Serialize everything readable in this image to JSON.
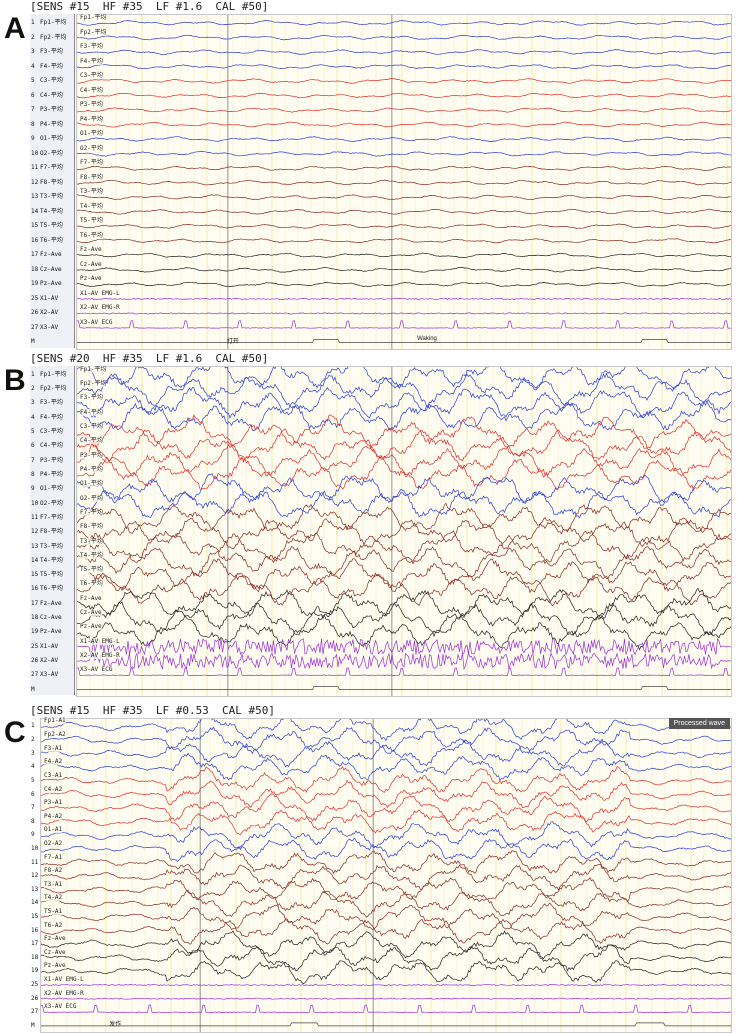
{
  "panels": [
    {
      "letter": "A",
      "header": "[SENS #15  HF #35  LF #1.6  CAL #50]",
      "montage": "bipolar",
      "markers": [
        "打开",
        "Waking"
      ],
      "channels": [
        {
          "n": "1",
          "left": "Fp1-平均",
          "trace": "Fp1-平均",
          "color": "#2b3fd6",
          "type": "eeg"
        },
        {
          "n": "2",
          "left": "Fp2-平均",
          "trace": "Fp2-平均",
          "color": "#2b3fd6",
          "type": "eeg"
        },
        {
          "n": "3",
          "left": "F3-平均",
          "trace": "F3-平均",
          "color": "#2b3fd6",
          "type": "eeg"
        },
        {
          "n": "4",
          "left": "F4-平均",
          "trace": "F4-平均",
          "color": "#2b3fd6",
          "type": "eeg"
        },
        {
          "n": "5",
          "left": "C3-平均",
          "trace": "C3-平均",
          "color": "#e0302a",
          "type": "eeg"
        },
        {
          "n": "6",
          "left": "C4-平均",
          "trace": "C4-平均",
          "color": "#e0302a",
          "type": "eeg"
        },
        {
          "n": "7",
          "left": "P3-平均",
          "trace": "P3-平均",
          "color": "#e0302a",
          "type": "eeg"
        },
        {
          "n": "8",
          "left": "P4-平均",
          "trace": "P4-平均",
          "color": "#e0302a",
          "type": "eeg"
        },
        {
          "n": "9",
          "left": "O1-平均",
          "trace": "O1-平均",
          "color": "#2b3fd6",
          "type": "eeg"
        },
        {
          "n": "10",
          "left": "O2-平均",
          "trace": "O2-平均",
          "color": "#2b3fd6",
          "type": "eeg"
        },
        {
          "n": "11",
          "left": "F7-平均",
          "trace": "F7-平均",
          "color": "#8b2a20",
          "type": "eeg"
        },
        {
          "n": "12",
          "left": "F8-平均",
          "trace": "F8-平均",
          "color": "#8b2a20",
          "type": "eeg"
        },
        {
          "n": "13",
          "left": "T3-平均",
          "trace": "T3-平均",
          "color": "#8b2a20",
          "type": "eeg"
        },
        {
          "n": "14",
          "left": "T4-平均",
          "trace": "T4-平均",
          "color": "#8b2a20",
          "type": "eeg"
        },
        {
          "n": "15",
          "left": "T5-平均",
          "trace": "T5-平均",
          "color": "#8b2a20",
          "type": "eeg"
        },
        {
          "n": "16",
          "left": "T6-平均",
          "trace": "T6-平均",
          "color": "#8b2a20",
          "type": "eeg"
        },
        {
          "n": "17",
          "left": "Fz-Ave",
          "trace": "Fz-Ave",
          "color": "#222222",
          "type": "eeg"
        },
        {
          "n": "18",
          "left": "Cz-Ave",
          "trace": "Cz-Ave",
          "color": "#222222",
          "type": "eeg"
        },
        {
          "n": "19",
          "left": "Pz-Ave",
          "trace": "Pz-Ave",
          "color": "#222222",
          "type": "eeg"
        },
        {
          "n": "25",
          "left": "X1-AV",
          "trace": "X1-AV  EMG-L",
          "color": "#9b30d9",
          "type": "emg"
        },
        {
          "n": "26",
          "left": "X2-AV",
          "trace": "X2-AV  EMG-R",
          "color": "#9b30d9",
          "type": "emg"
        },
        {
          "n": "27",
          "left": "X3-AV",
          "trace": "X3-AV  ECG",
          "color": "#9b30d9",
          "type": "ecg"
        },
        {
          "n": "M",
          "left": "",
          "trace": "",
          "color": "#444444",
          "type": "mark"
        }
      ]
    },
    {
      "letter": "B",
      "header": "[SENS #20  HF #35  LF #1.6  CAL #50]",
      "montage": "bipolar",
      "markers": [],
      "channels": [
        {
          "n": "1",
          "left": "Fp1-平均",
          "trace": "Fp1-平均",
          "color": "#2b3fd6",
          "type": "eeg"
        },
        {
          "n": "2",
          "left": "Fp2-平均",
          "trace": "Fp2-平均",
          "color": "#2b3fd6",
          "type": "eeg"
        },
        {
          "n": "3",
          "left": "F3-平均",
          "trace": "F3-平均",
          "color": "#2b3fd6",
          "type": "eeg"
        },
        {
          "n": "4",
          "left": "F4-平均",
          "trace": "F4-平均",
          "color": "#2b3fd6",
          "type": "eeg"
        },
        {
          "n": "5",
          "left": "C3-平均",
          "trace": "C3-平均",
          "color": "#e0302a",
          "type": "eeg"
        },
        {
          "n": "6",
          "left": "C4-平均",
          "trace": "C4-平均",
          "color": "#e0302a",
          "type": "eeg"
        },
        {
          "n": "7",
          "left": "P3-平均",
          "trace": "P3-平均",
          "color": "#e0302a",
          "type": "eeg"
        },
        {
          "n": "8",
          "left": "P4-平均",
          "trace": "P4-平均",
          "color": "#e0302a",
          "type": "eeg"
        },
        {
          "n": "9",
          "left": "O1-平均",
          "trace": "O1-平均",
          "color": "#2b3fd6",
          "type": "eeg"
        },
        {
          "n": "10",
          "left": "O2-平均",
          "trace": "O2-平均",
          "color": "#2b3fd6",
          "type": "eeg"
        },
        {
          "n": "11",
          "left": "F7-平均",
          "trace": "F7-平均",
          "color": "#8b2a20",
          "type": "eeg"
        },
        {
          "n": "12",
          "left": "F8-平均",
          "trace": "F8-平均",
          "color": "#8b2a20",
          "type": "eeg"
        },
        {
          "n": "13",
          "left": "T3-平均",
          "trace": "T3-平均",
          "color": "#8b2a20",
          "type": "eeg"
        },
        {
          "n": "14",
          "left": "T4-平均",
          "trace": "T4-平均",
          "color": "#8b2a20",
          "type": "eeg"
        },
        {
          "n": "15",
          "left": "T5-平均",
          "trace": "T5-平均",
          "color": "#8b2a20",
          "type": "eeg"
        },
        {
          "n": "16",
          "left": "T6-平均",
          "trace": "T6-平均",
          "color": "#8b2a20",
          "type": "eeg"
        },
        {
          "n": "17",
          "left": "Fz-Ave",
          "trace": "Fz-Ave",
          "color": "#222222",
          "type": "eeg"
        },
        {
          "n": "18",
          "left": "Cz-Ave",
          "trace": "Cz-Ave",
          "color": "#222222",
          "type": "eeg"
        },
        {
          "n": "19",
          "left": "Pz-Ave",
          "trace": "Pz-Ave",
          "color": "#222222",
          "type": "eeg"
        },
        {
          "n": "25",
          "left": "X1-AV",
          "trace": "X1-AV  EMG-L",
          "color": "#9b30d9",
          "type": "emg"
        },
        {
          "n": "26",
          "left": "X2-AV",
          "trace": "X2-AV  EMG-R",
          "color": "#9b30d9",
          "type": "emg"
        },
        {
          "n": "27",
          "left": "X3-AV",
          "trace": "X3-AV  ECG",
          "color": "#9b30d9",
          "type": "ecg"
        },
        {
          "n": "M",
          "left": "",
          "trace": "",
          "color": "#444444",
          "type": "mark"
        }
      ]
    },
    {
      "letter": "C",
      "header": "[SENS #15  HF #35  LF #0.53  CAL #50]",
      "montage": "referential",
      "tag": "Processed wave",
      "markers": [
        "发作"
      ],
      "channels": [
        {
          "n": "1",
          "left": "",
          "trace": "Fp1-A1",
          "color": "#2b3fd6",
          "type": "eeg"
        },
        {
          "n": "2",
          "left": "",
          "trace": "Fp2-A2",
          "color": "#2b3fd6",
          "type": "eeg"
        },
        {
          "n": "3",
          "left": "",
          "trace": "F3-A1",
          "color": "#2b3fd6",
          "type": "eeg"
        },
        {
          "n": "4",
          "left": "",
          "trace": "F4-A2",
          "color": "#2b3fd6",
          "type": "eeg"
        },
        {
          "n": "5",
          "left": "",
          "trace": "C3-A1",
          "color": "#e0302a",
          "type": "eeg"
        },
        {
          "n": "6",
          "left": "",
          "trace": "C4-A2",
          "color": "#e0302a",
          "type": "eeg"
        },
        {
          "n": "7",
          "left": "",
          "trace": "P3-A1",
          "color": "#e0302a",
          "type": "eeg"
        },
        {
          "n": "8",
          "left": "",
          "trace": "P4-A2",
          "color": "#e0302a",
          "type": "eeg"
        },
        {
          "n": "9",
          "left": "",
          "trace": "O1-A1",
          "color": "#2b3fd6",
          "type": "eeg"
        },
        {
          "n": "10",
          "left": "",
          "trace": "O2-A2",
          "color": "#2b3fd6",
          "type": "eeg"
        },
        {
          "n": "11",
          "left": "",
          "trace": "F7-A1",
          "color": "#8b2a20",
          "type": "eeg"
        },
        {
          "n": "12",
          "left": "",
          "trace": "F8-A2",
          "color": "#8b2a20",
          "type": "eeg"
        },
        {
          "n": "13",
          "left": "",
          "trace": "T3-A1",
          "color": "#8b2a20",
          "type": "eeg"
        },
        {
          "n": "14",
          "left": "",
          "trace": "T4-A2",
          "color": "#8b2a20",
          "type": "eeg"
        },
        {
          "n": "15",
          "left": "",
          "trace": "T5-A1",
          "color": "#8b2a20",
          "type": "eeg"
        },
        {
          "n": "16",
          "left": "",
          "trace": "T6-A2",
          "color": "#8b2a20",
          "type": "eeg"
        },
        {
          "n": "17",
          "left": "",
          "trace": "Fz-Ave",
          "color": "#222222",
          "type": "eeg"
        },
        {
          "n": "18",
          "left": "",
          "trace": "Cz-Ave",
          "color": "#222222",
          "type": "eeg"
        },
        {
          "n": "19",
          "left": "",
          "trace": "Pz-Ave",
          "color": "#222222",
          "type": "eeg"
        },
        {
          "n": "25",
          "left": "",
          "trace": "X1-AV  EMG-L",
          "color": "#9b30d9",
          "type": "emg"
        },
        {
          "n": "26",
          "left": "",
          "trace": "X2-AV  EMG-R",
          "color": "#9b30d9",
          "type": "emg"
        },
        {
          "n": "27",
          "left": "",
          "trace": "X3-AV  ECG",
          "color": "#9b30d9",
          "type": "ecg"
        },
        {
          "n": "M",
          "left": "",
          "trace": "",
          "color": "#444444",
          "type": "mark"
        }
      ]
    }
  ]
}
